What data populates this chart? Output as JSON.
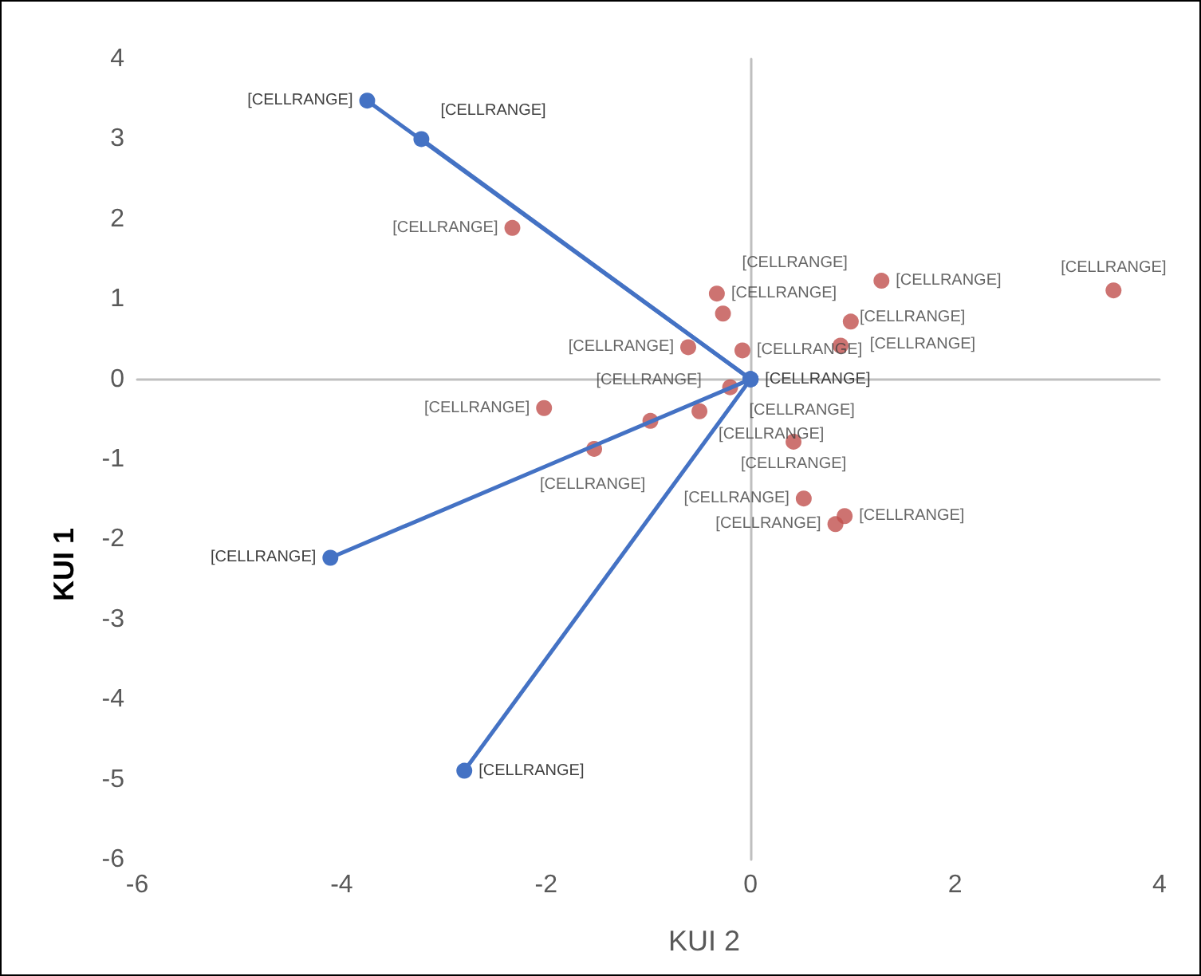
{
  "chart_data": {
    "type": "scatter",
    "xlabel": "KUI 2",
    "ylabel": "KUI 1",
    "xlim": [
      -6,
      4
    ],
    "ylim": [
      -6,
      4
    ],
    "xticks": [
      -6,
      -4,
      -2,
      0,
      2,
      4
    ],
    "yticks": [
      -6,
      -5,
      -4,
      -3,
      -2,
      -1,
      0,
      1,
      2,
      3,
      4
    ],
    "marker": "circle",
    "series": [
      {
        "type": "line",
        "color": "#4472c4",
        "x": [
          0,
          -3.75
        ],
        "values": [
          0,
          3.48
        ],
        "value_labels": [
          null,
          "[CELLRANGE]"
        ]
      },
      {
        "type": "line",
        "color": "#4472c4",
        "x": [
          0,
          -3.22
        ],
        "values": [
          0,
          3.0
        ],
        "value_labels": [
          null,
          "[CELLRANGE]"
        ]
      },
      {
        "type": "line",
        "color": "#4472c4",
        "x": [
          0,
          -4.11
        ],
        "values": [
          0,
          -2.23
        ],
        "value_labels": [
          null,
          "[CELLRANGE]"
        ]
      },
      {
        "type": "line",
        "color": "#4472c4",
        "x": [
          0,
          -2.8
        ],
        "values": [
          0,
          -4.89
        ],
        "value_labels": [
          "[CELLRANGE]",
          "[CELLRANGE]"
        ]
      },
      {
        "color": "#c0504d",
        "x": [
          -2.33,
          -2.02,
          -1.53,
          -0.98,
          -0.5,
          -0.61,
          -0.33,
          -0.27,
          -0.08,
          -0.2,
          0.42,
          0.52,
          0.83,
          0.92,
          0.88,
          0.98,
          1.28,
          3.55
        ],
        "values": [
          1.89,
          -0.36,
          -0.87,
          -0.52,
          -0.4,
          0.4,
          1.07,
          0.82,
          0.36,
          -0.1,
          -0.78,
          -1.49,
          -1.81,
          -1.71,
          0.42,
          0.72,
          1.23,
          1.11
        ],
        "value_labels": [
          "[CELLRANGE]",
          "[CELLRANGE]",
          "[CELLRANGE]",
          "[CELLRANGE]",
          "[CELLRANGE]",
          "[CELLRANGE]",
          "[CELLRANGE]",
          "[CELLRANGE]",
          "[CELLRANGE]",
          "[CELLRANGE]",
          "[CELLRANGE]",
          "[CELLRANGE]",
          "[CELLRANGE]",
          "[CELLRANGE]",
          "[CELLRANGE]",
          "[CELLRANGE]",
          "[CELLRANGE]",
          "[CELLRANGE]"
        ]
      }
    ]
  }
}
